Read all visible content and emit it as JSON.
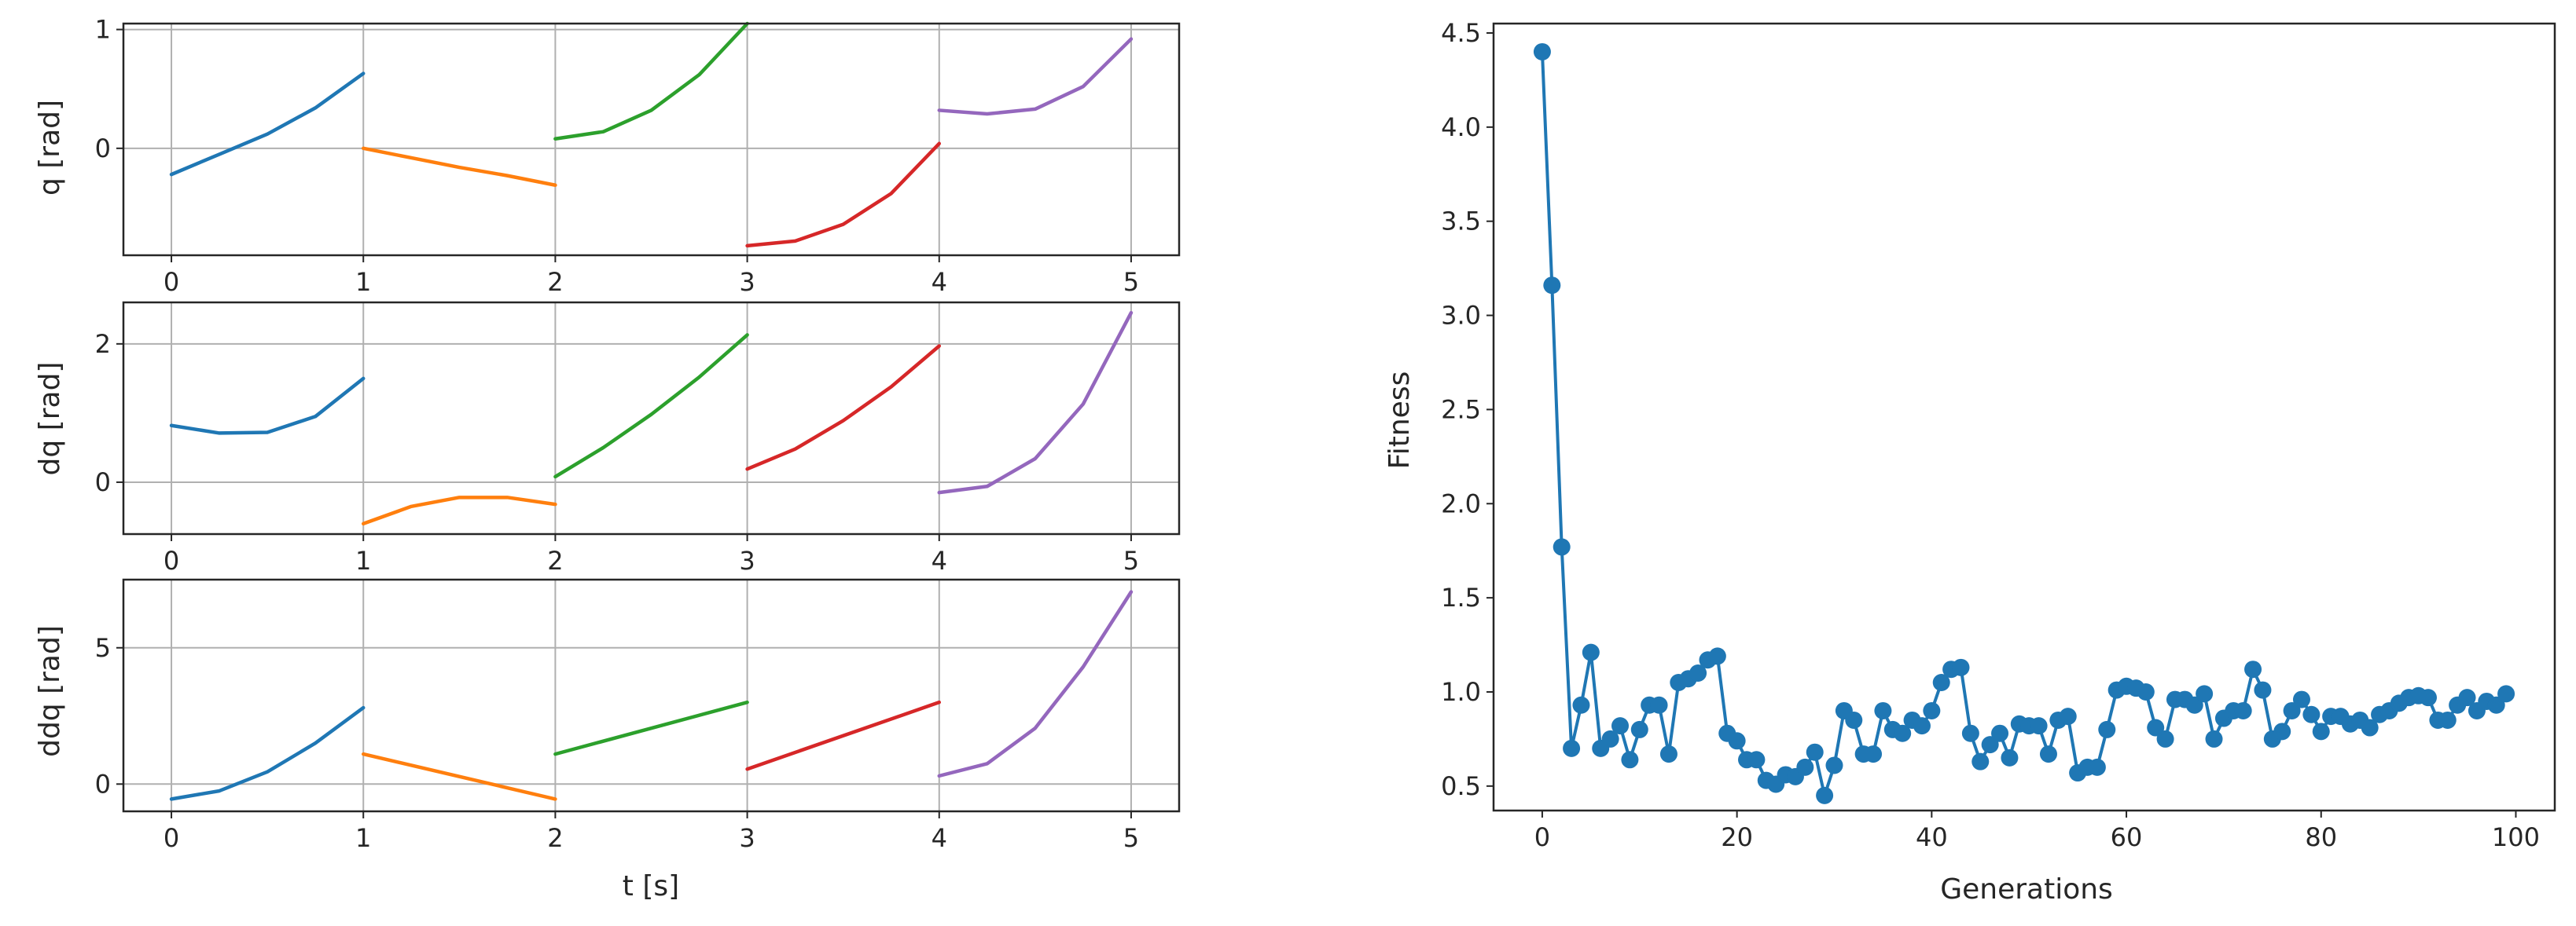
{
  "chart_data": [
    {
      "type": "line",
      "xlabel": "",
      "ylabel": "q [rad]",
      "xlim": [
        -0.25,
        5.25
      ],
      "ylim": [
        -0.9,
        1.05
      ],
      "xticks": [
        0,
        1,
        2,
        3,
        4,
        5
      ],
      "yticks": [
        0,
        1
      ],
      "grid": true,
      "series": [
        {
          "color": "#1f77b4",
          "x": [
            0,
            0.25,
            0.5,
            0.75,
            1.0
          ],
          "y": [
            -0.22,
            -0.05,
            0.12,
            0.34,
            0.63
          ]
        },
        {
          "color": "#ff7f0e",
          "x": [
            1.0,
            1.25,
            1.5,
            1.75,
            2.0
          ],
          "y": [
            0.0,
            -0.08,
            -0.16,
            -0.23,
            -0.31
          ]
        },
        {
          "color": "#2ca02c",
          "x": [
            2.0,
            2.25,
            2.5,
            2.75,
            3.0
          ],
          "y": [
            0.08,
            0.14,
            0.32,
            0.62,
            1.05
          ]
        },
        {
          "color": "#d62728",
          "x": [
            3.0,
            3.25,
            3.5,
            3.75,
            4.0
          ],
          "y": [
            -0.82,
            -0.78,
            -0.64,
            -0.38,
            0.04
          ]
        },
        {
          "color": "#9467bd",
          "x": [
            4.0,
            4.25,
            4.5,
            4.75,
            5.0
          ],
          "y": [
            0.32,
            0.29,
            0.33,
            0.52,
            0.92
          ]
        }
      ]
    },
    {
      "type": "line",
      "xlabel": "",
      "ylabel": "dq [rad]",
      "xlim": [
        -0.25,
        5.25
      ],
      "ylim": [
        -0.75,
        2.6
      ],
      "xticks": [
        0,
        1,
        2,
        3,
        4,
        5
      ],
      "yticks": [
        0,
        2
      ],
      "grid": true,
      "series": [
        {
          "color": "#1f77b4",
          "x": [
            0,
            0.25,
            0.5,
            0.75,
            1.0
          ],
          "y": [
            0.82,
            0.71,
            0.72,
            0.95,
            1.5
          ]
        },
        {
          "color": "#ff7f0e",
          "x": [
            1.0,
            1.25,
            1.5,
            1.75,
            2.0
          ],
          "y": [
            -0.6,
            -0.35,
            -0.22,
            -0.22,
            -0.32
          ]
        },
        {
          "color": "#2ca02c",
          "x": [
            2.0,
            2.25,
            2.5,
            2.75,
            3.0
          ],
          "y": [
            0.08,
            0.5,
            0.98,
            1.52,
            2.13
          ]
        },
        {
          "color": "#d62728",
          "x": [
            3.0,
            3.25,
            3.5,
            3.75,
            4.0
          ],
          "y": [
            0.19,
            0.48,
            0.89,
            1.38,
            1.97
          ]
        },
        {
          "color": "#9467bd",
          "x": [
            4.0,
            4.25,
            4.5,
            4.75,
            5.0
          ],
          "y": [
            -0.15,
            -0.06,
            0.34,
            1.13,
            2.45
          ]
        }
      ]
    },
    {
      "type": "line",
      "xlabel": "t [s]",
      "ylabel": "ddq [rad]",
      "xlim": [
        -0.25,
        5.25
      ],
      "ylim": [
        -1.0,
        7.5
      ],
      "xticks": [
        0,
        1,
        2,
        3,
        4,
        5
      ],
      "yticks": [
        0,
        5
      ],
      "grid": true,
      "series": [
        {
          "color": "#1f77b4",
          "x": [
            0,
            0.25,
            0.5,
            0.75,
            1.0
          ],
          "y": [
            -0.55,
            -0.25,
            0.45,
            1.5,
            2.8
          ]
        },
        {
          "color": "#ff7f0e",
          "x": [
            1.0,
            2.0
          ],
          "y": [
            1.1,
            -0.55
          ]
        },
        {
          "color": "#2ca02c",
          "x": [
            2.0,
            3.0
          ],
          "y": [
            1.1,
            3.0
          ]
        },
        {
          "color": "#d62728",
          "x": [
            3.0,
            4.0
          ],
          "y": [
            0.55,
            3.0
          ]
        },
        {
          "color": "#9467bd",
          "x": [
            4.0,
            4.25,
            4.5,
            4.75,
            5.0
          ],
          "y": [
            0.3,
            0.75,
            2.05,
            4.3,
            7.05
          ]
        }
      ]
    },
    {
      "type": "line",
      "xlabel": "Generations",
      "ylabel": "Fitness",
      "xlim": [
        -5,
        104
      ],
      "ylim": [
        0.37,
        4.55
      ],
      "xticks": [
        0,
        20,
        40,
        60,
        80,
        100
      ],
      "ytick_labels": [
        "0.5",
        "1.0",
        "1.5",
        "2.0",
        "2.5",
        "3.0",
        "3.5",
        "4.0",
        "4.5"
      ],
      "grid": false,
      "markers": true,
      "series": [
        {
          "color": "#1f77b4",
          "x": [
            0,
            1,
            2,
            3,
            4,
            5,
            6,
            7,
            8,
            9,
            10,
            11,
            12,
            13,
            14,
            15,
            16,
            17,
            18,
            19,
            20,
            21,
            22,
            23,
            24,
            25,
            26,
            27,
            28,
            29,
            30,
            31,
            32,
            33,
            34,
            35,
            36,
            37,
            38,
            39,
            40,
            41,
            42,
            43,
            44,
            45,
            46,
            47,
            48,
            49,
            50,
            51,
            52,
            53,
            54,
            55,
            56,
            57,
            58,
            59,
            60,
            61,
            62,
            63,
            64,
            65,
            66,
            67,
            68,
            69,
            70,
            71,
            72,
            73,
            74,
            75,
            76,
            77,
            78,
            79,
            80,
            81,
            82,
            83,
            84,
            85,
            86,
            87,
            88,
            89,
            90,
            91,
            92,
            93,
            94,
            95,
            96,
            97,
            98,
            99
          ],
          "y": [
            4.4,
            3.16,
            1.77,
            0.7,
            0.93,
            1.21,
            0.7,
            0.75,
            0.82,
            0.64,
            0.8,
            0.93,
            0.93,
            0.67,
            1.05,
            1.07,
            1.1,
            1.17,
            1.19,
            0.78,
            0.74,
            0.64,
            0.64,
            0.53,
            0.51,
            0.56,
            0.55,
            0.6,
            0.68,
            0.45,
            0.61,
            0.9,
            0.85,
            0.67,
            0.67,
            0.9,
            0.8,
            0.78,
            0.85,
            0.82,
            0.9,
            1.05,
            1.12,
            1.13,
            0.78,
            0.63,
            0.72,
            0.78,
            0.65,
            0.83,
            0.82,
            0.82,
            0.67,
            0.85,
            0.87,
            0.57,
            0.6,
            0.6,
            0.8,
            1.01,
            1.03,
            1.02,
            1.0,
            0.81,
            0.75,
            0.96,
            0.96,
            0.93,
            0.99,
            0.75,
            0.86,
            0.9,
            0.9,
            1.12,
            1.01,
            0.75,
            0.79,
            0.9,
            0.96,
            0.88,
            0.79,
            0.87,
            0.87,
            0.83,
            0.85,
            0.81,
            0.88,
            0.9,
            0.94,
            0.97,
            0.98,
            0.97,
            0.85,
            0.85,
            0.93,
            0.97,
            0.9,
            0.95,
            0.93,
            0.99
          ]
        }
      ]
    }
  ]
}
